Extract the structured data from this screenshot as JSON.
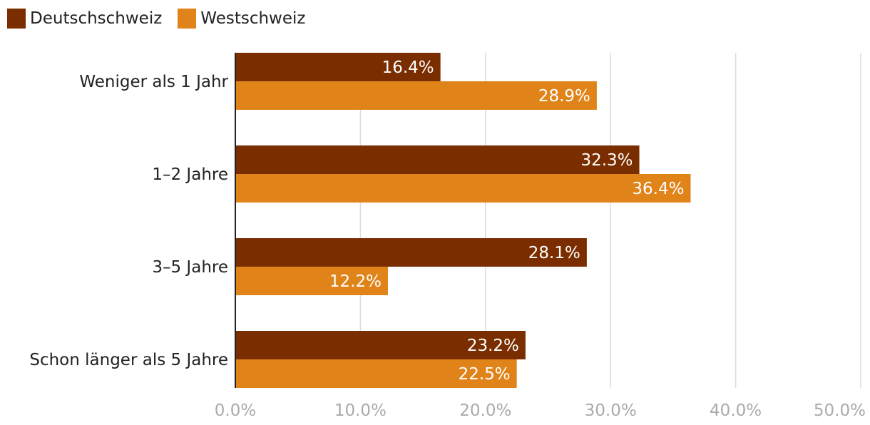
{
  "chart_data": {
    "type": "bar",
    "orientation": "horizontal",
    "categories": [
      "Weniger als 1 Jahr",
      "1–2 Jahre",
      "3–5 Jahre",
      "Schon länger als 5 Jahre"
    ],
    "series": [
      {
        "name": "Deutschschweiz",
        "color": "#7a2e00",
        "values": [
          16.4,
          32.3,
          28.1,
          23.2
        ]
      },
      {
        "name": "Westschweiz",
        "color": "#e0841a",
        "values": [
          28.9,
          36.4,
          12.2,
          22.5
        ]
      }
    ],
    "data_labels": [
      [
        "16.4%",
        "32.3%",
        "28.1%",
        "23.2%"
      ],
      [
        "28.9%",
        "36.4%",
        "12.2%",
        "22.5%"
      ]
    ],
    "xlim": [
      0,
      50
    ],
    "x_ticks": [
      0,
      10,
      20,
      30,
      40,
      50
    ],
    "x_tick_labels": [
      "0.0%",
      "10.0%",
      "20.0%",
      "30.0%",
      "40.0%",
      "50.0%"
    ],
    "title": "",
    "xlabel": "",
    "ylabel": "",
    "grid": true,
    "legend_position": "top-left"
  }
}
